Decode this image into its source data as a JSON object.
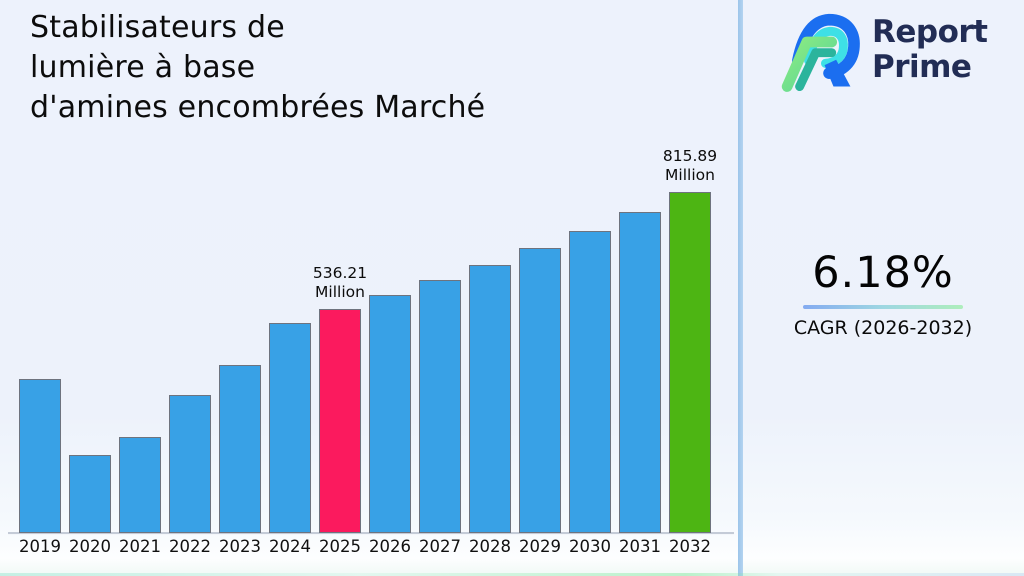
{
  "title": {
    "lines": [
      "Stabilisateurs de",
      "lumière à base",
      "d'amines encombrées Marché"
    ]
  },
  "logo": {
    "name": "Report Prime",
    "line1": "Report",
    "line2": "Prime"
  },
  "cagr": {
    "value": "6.18%",
    "label": "CAGR (2026-2032)"
  },
  "chart_data": {
    "type": "bar",
    "title": "Stabilisateurs de lumière à base d'amines encombrées Marché",
    "unit": "Million",
    "categories": [
      "2019",
      "2020",
      "2021",
      "2022",
      "2023",
      "2024",
      "2025",
      "2026",
      "2027",
      "2028",
      "2029",
      "2030",
      "2031",
      "2032"
    ],
    "values": [
      368.7,
      186.7,
      229.8,
      330.3,
      402.2,
      502.7,
      536.21,
      569.35,
      604.53,
      641.89,
      681.56,
      723.68,
      768.4,
      815.89
    ],
    "labeled_values": {
      "2025": "536.21",
      "2032": "815.89"
    },
    "annotations": [
      {
        "category": "2025",
        "lines": [
          "536.21",
          "Million"
        ]
      },
      {
        "category": "2032",
        "lines": [
          "815.89",
          "Million"
        ]
      }
    ],
    "colors": {
      "bar_default": "#38a1e6",
      "bar_2025": "#fb1a5e",
      "bar_2032": "#4db513",
      "bar_edge": "#6e737e",
      "accent_blue": "#1b6ef0",
      "accent_cyan": "#3ee0e6",
      "accent_green": "#7fe07a",
      "accent_teal": "#2bb49c"
    },
    "ylim": [
      0,
      860
    ],
    "grid": false,
    "legend": false,
    "x_axis_visible": true,
    "y_axis_visible": false
  }
}
